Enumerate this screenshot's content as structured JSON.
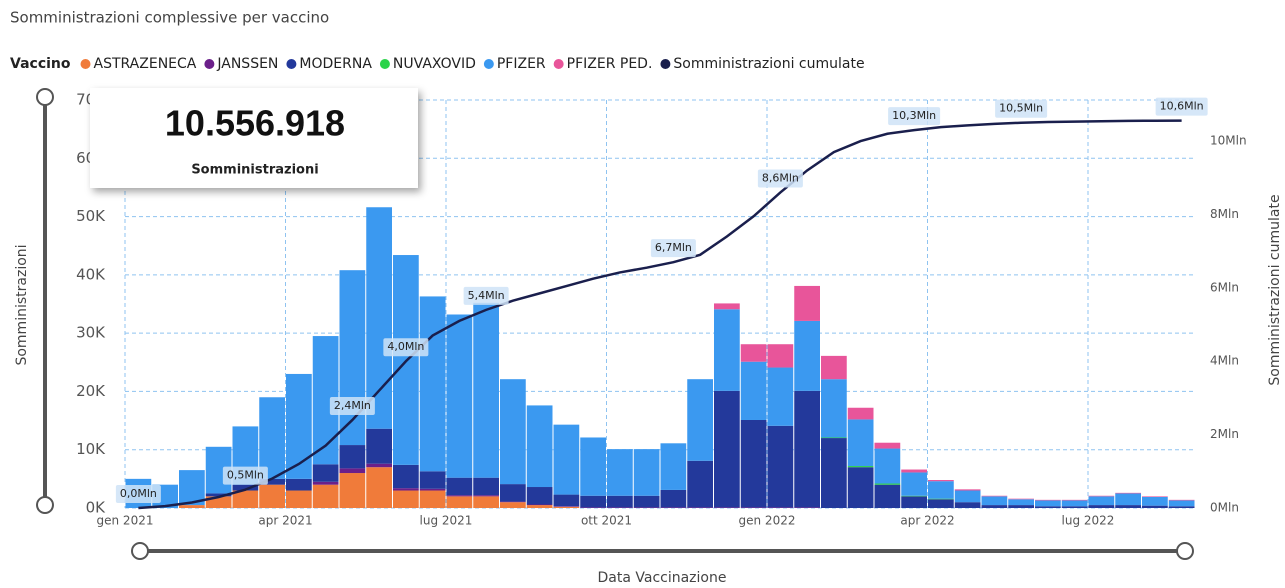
{
  "chart_data": {
    "type": "stacked-bar-line",
    "title": "Somministrazioni complessive per vaccino",
    "legend_title": "Vaccino",
    "kpi": {
      "value": "10.556.918",
      "label": "Somministrazioni"
    },
    "y_label": "Somministrazioni",
    "y2_label": "Somministrazioni cumulate",
    "x_label": "Data Vaccinazione",
    "categories": [
      "gen 2021",
      null,
      null,
      null,
      null,
      null,
      "apr 2021",
      null,
      null,
      null,
      null,
      null,
      "lug 2021",
      null,
      null,
      null,
      null,
      null,
      "ott 2021",
      null,
      null,
      null,
      null,
      null,
      "gen 2022",
      null,
      null,
      null,
      null,
      null,
      "apr 2022",
      null,
      null,
      null,
      null,
      null,
      "lug 2022",
      null,
      null,
      null
    ],
    "ylim": [
      0,
      70000
    ],
    "yticks": [
      {
        "value": 0,
        "label": "0K"
      },
      {
        "value": 10000,
        "label": "10K"
      },
      {
        "value": 20000,
        "label": "20K"
      },
      {
        "value": 30000,
        "label": "30K"
      },
      {
        "value": 40000,
        "label": "40K"
      },
      {
        "value": 50000,
        "label": "50K"
      },
      {
        "value": 60000,
        "label": "60K"
      },
      {
        "value": 70000,
        "label": "70K"
      }
    ],
    "y2lim": [
      0,
      11120000
    ],
    "y2ticks": [
      {
        "value": 0,
        "label": "0Mln"
      },
      {
        "value": 2000000,
        "label": "2Mln"
      },
      {
        "value": 4000000,
        "label": "4Mln"
      },
      {
        "value": 6000000,
        "label": "6Mln"
      },
      {
        "value": 8000000,
        "label": "8Mln"
      },
      {
        "value": 10000000,
        "label": "10Mln"
      }
    ],
    "grid": true,
    "series": [
      {
        "name": "ASTRAZENECA",
        "color": "#f07b3a",
        "values": [
          0,
          0,
          500,
          2000,
          3000,
          4000,
          3000,
          4000,
          6000,
          7000,
          3000,
          3000,
          2000,
          2000,
          1000,
          500,
          200,
          0,
          0,
          0,
          0,
          0,
          0,
          0,
          0,
          0,
          0,
          0,
          0,
          0,
          0,
          0,
          0,
          0,
          0,
          0,
          0,
          0,
          0,
          0
        ]
      },
      {
        "name": "JANSSEN",
        "color": "#6b1f8a",
        "values": [
          0,
          0,
          0,
          0,
          0,
          0,
          0,
          500,
          800,
          600,
          400,
          300,
          200,
          200,
          100,
          100,
          100,
          100,
          100,
          100,
          100,
          100,
          100,
          100,
          100,
          100,
          0,
          0,
          0,
          0,
          0,
          0,
          0,
          0,
          0,
          0,
          0,
          0,
          0,
          0
        ]
      },
      {
        "name": "MODERNA",
        "color": "#23399b",
        "values": [
          0,
          0,
          0,
          500,
          1000,
          1000,
          2000,
          3000,
          4000,
          6000,
          4000,
          3000,
          3000,
          3000,
          3000,
          3000,
          2000,
          2000,
          2000,
          2000,
          3000,
          8000,
          20000,
          15000,
          14000,
          20000,
          12000,
          7000,
          4000,
          2000,
          1500,
          1000,
          500,
          500,
          300,
          300,
          500,
          500,
          400,
          300
        ]
      },
      {
        "name": "NUVAXOVID",
        "color": "#2bd34a",
        "values": [
          0,
          0,
          0,
          0,
          0,
          0,
          0,
          0,
          0,
          0,
          0,
          0,
          0,
          0,
          0,
          0,
          0,
          0,
          0,
          0,
          0,
          0,
          0,
          0,
          0,
          0,
          100,
          200,
          200,
          100,
          100,
          0,
          0,
          0,
          0,
          0,
          0,
          0,
          0,
          0
        ]
      },
      {
        "name": "PFIZER",
        "color": "#3b99f0",
        "values": [
          5000,
          4000,
          6000,
          8000,
          10000,
          14000,
          18000,
          22000,
          30000,
          38000,
          36000,
          30000,
          28000,
          30000,
          18000,
          14000,
          12000,
          10000,
          8000,
          8000,
          8000,
          14000,
          14000,
          10000,
          10000,
          12000,
          10000,
          8000,
          6000,
          4000,
          3000,
          2000,
          1500,
          1000,
          1000,
          1000,
          1500,
          2000,
          1500,
          1000
        ]
      },
      {
        "name": "PFIZER PED.",
        "color": "#e8559a",
        "values": [
          0,
          0,
          0,
          0,
          0,
          0,
          0,
          0,
          0,
          0,
          0,
          0,
          0,
          0,
          0,
          0,
          0,
          0,
          0,
          0,
          0,
          0,
          1000,
          3000,
          4000,
          6000,
          4000,
          2000,
          1000,
          500,
          200,
          200,
          100,
          100,
          100,
          100,
          100,
          100,
          100,
          100
        ]
      },
      {
        "name": "Somministrazioni cumulate",
        "color": "#1a1f4d",
        "axis": "y2",
        "values": [
          0,
          50000,
          150000,
          300000,
          500000,
          800000,
          1200000,
          1700000,
          2400000,
          3200000,
          4000000,
          4700000,
          5100000,
          5400000,
          5650000,
          5850000,
          6050000,
          6250000,
          6420000,
          6550000,
          6700000,
          6900000,
          7400000,
          7950000,
          8600000,
          9200000,
          9700000,
          10000000,
          10200000,
          10300000,
          10380000,
          10430000,
          10470000,
          10500000,
          10520000,
          10530000,
          10540000,
          10550000,
          10555000,
          10557000
        ],
        "value_labels": [
          "0,0Mln",
          null,
          null,
          null,
          "0,5Mln",
          null,
          null,
          null,
          "2,4Mln",
          null,
          "4,0Mln",
          null,
          null,
          "5,4Mln",
          null,
          null,
          null,
          null,
          null,
          null,
          "6,7Mln",
          null,
          null,
          null,
          "8,6Mln",
          null,
          null,
          null,
          null,
          "10,3Mln",
          null,
          null,
          null,
          "10,5Mln",
          null,
          null,
          null,
          null,
          null,
          "10,6Mln"
        ]
      }
    ]
  }
}
